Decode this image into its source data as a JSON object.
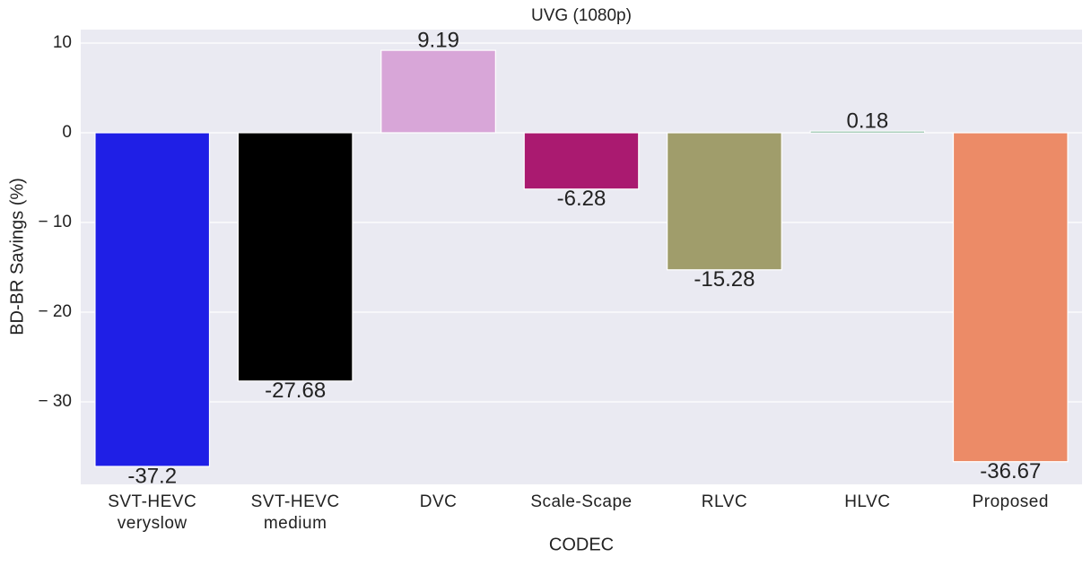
{
  "chart_data": {
    "type": "bar",
    "title": "UVG (1080p)",
    "x_label": "CODEC",
    "y_label": "BD-BR Savings (%)",
    "categories": [
      [
        "SVT-HEVC",
        "veryslow"
      ],
      [
        "SVT-HEVC",
        "medium"
      ],
      [
        "DVC"
      ],
      [
        "Scale-Scape"
      ],
      [
        "RLVC"
      ],
      [
        "HLVC"
      ],
      [
        "Proposed"
      ]
    ],
    "values": [
      -37.2,
      -27.68,
      9.19,
      -6.28,
      -15.28,
      0.18,
      -36.67
    ],
    "colors": [
      "#1f1fe6",
      "#000000",
      "#d8a6d8",
      "#aa1a70",
      "#a09d6b",
      "#2e8b57",
      "#ec8b67"
    ],
    "ylim": [
      -39.2,
      11.5
    ],
    "yticks": [
      {
        "value": -30,
        "label": "− 30"
      },
      {
        "value": -20,
        "label": "− 20"
      },
      {
        "value": -10,
        "label": "− 10"
      },
      0,
      10
    ],
    "grid": true
  }
}
